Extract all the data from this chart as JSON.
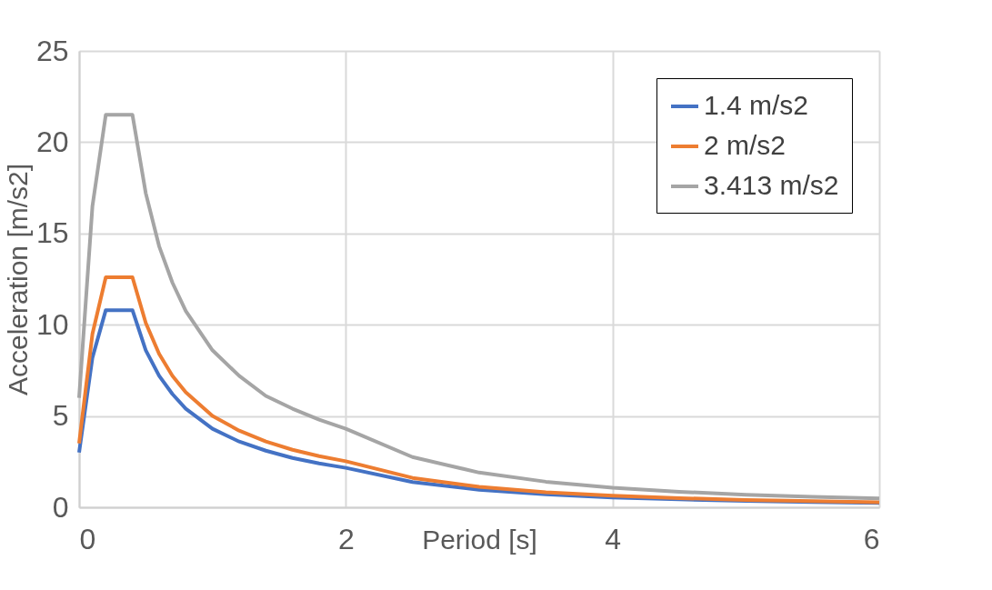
{
  "chart_data": {
    "type": "line",
    "xlabel": "Period [s]",
    "ylabel": "Acceleration [m/s2]",
    "x": [
      0,
      0.1,
      0.2,
      0.4,
      0.5,
      0.6,
      0.7,
      0.8,
      1,
      1.2,
      1.4,
      1.6,
      1.8,
      2,
      2.5,
      3,
      3.5,
      4,
      4.5,
      5,
      5.5,
      6
    ],
    "series": [
      {
        "name": "1.4 m/s2",
        "color": "#4472c4",
        "values": [
          3.0,
          8.2,
          10.8,
          10.8,
          8.6,
          7.2,
          6.2,
          5.4,
          4.3,
          3.6,
          3.1,
          2.7,
          2.4,
          2.16,
          1.38,
          0.96,
          0.71,
          0.54,
          0.43,
          0.35,
          0.29,
          0.24
        ]
      },
      {
        "name": "2 m/s2",
        "color": "#ed7d31",
        "values": [
          3.5,
          9.5,
          12.6,
          12.6,
          10.1,
          8.4,
          7.2,
          6.3,
          5.0,
          4.2,
          3.6,
          3.15,
          2.8,
          2.52,
          1.61,
          1.12,
          0.82,
          0.63,
          0.5,
          0.4,
          0.33,
          0.28
        ]
      },
      {
        "name": "3.413 m/s2",
        "color": "#a5a5a5",
        "values": [
          6.0,
          16.5,
          21.5,
          21.5,
          17.2,
          14.3,
          12.3,
          10.75,
          8.6,
          7.2,
          6.1,
          5.4,
          4.8,
          4.3,
          2.75,
          1.9,
          1.4,
          1.07,
          0.85,
          0.69,
          0.57,
          0.48
        ]
      }
    ],
    "xlim": [
      0,
      6
    ],
    "xticks": [
      0,
      2,
      4,
      6
    ],
    "ylim": [
      0,
      25
    ],
    "yticks": [
      0,
      5,
      10,
      15,
      20,
      25
    ],
    "grid": true,
    "legend": "top right",
    "marker": "none",
    "line_style": "solid"
  }
}
